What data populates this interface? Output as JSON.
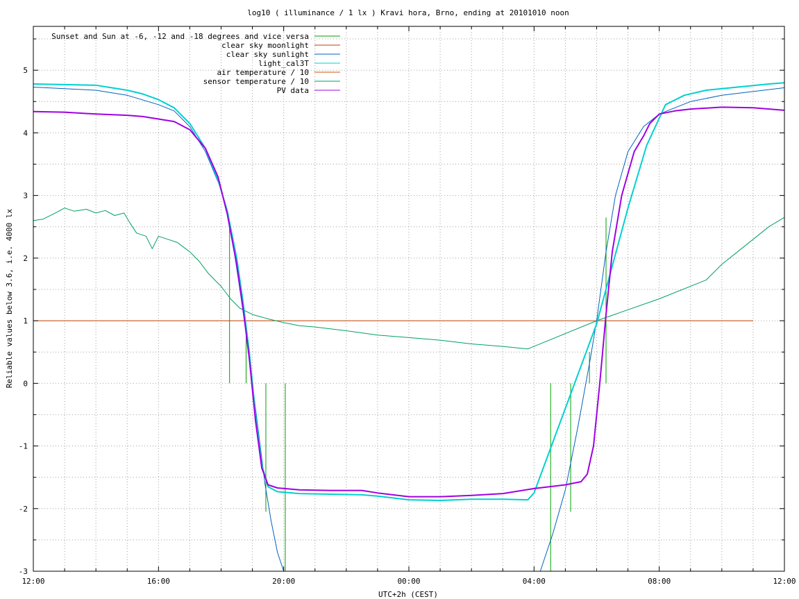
{
  "chart_data": {
    "type": "line",
    "title": "log10 ( illuminance / 1 lx ) Kravi hora, Brno, ending at 20101010 noon",
    "xlabel": "UTC+2h (CEST)",
    "ylabel": "Reliable values below 3.6, i.e. 4000 lx",
    "x_unit": "hours from 12:00",
    "xlim": [
      0,
      24
    ],
    "ylim": [
      -3,
      5.7
    ],
    "grid": true,
    "legend_position": "top-left",
    "x_ticks": [
      {
        "x": 0,
        "label": "12:00"
      },
      {
        "x": 4,
        "label": "16:00"
      },
      {
        "x": 8,
        "label": "20:00"
      },
      {
        "x": 12,
        "label": "00:00"
      },
      {
        "x": 16,
        "label": "04:00"
      },
      {
        "x": 20,
        "label": "08:00"
      },
      {
        "x": 24,
        "label": "12:00"
      }
    ],
    "y_ticks": [
      {
        "y": -3,
        "label": "-3"
      },
      {
        "y": -2,
        "label": "-2"
      },
      {
        "y": -1,
        "label": "-1"
      },
      {
        "y": 0,
        "label": "0"
      },
      {
        "y": 1,
        "label": "1"
      },
      {
        "y": 2,
        "label": "2"
      },
      {
        "y": 3,
        "label": "3"
      },
      {
        "y": 4,
        "label": "4"
      },
      {
        "y": 5,
        "label": "5"
      }
    ],
    "series": [
      {
        "name": "Sunset and Sun at -6, -12 and -18 degrees and vice versa",
        "color": "#00a000",
        "kind": "impulses",
        "points": [
          [
            6.27,
            2.6
          ],
          [
            6.8,
            0.9
          ],
          [
            7.43,
            -2.05
          ],
          [
            8.05,
            -3.0
          ],
          [
            16.53,
            -3.0
          ],
          [
            17.17,
            -2.05
          ],
          [
            17.77,
            0.5
          ],
          [
            18.3,
            2.65
          ]
        ]
      },
      {
        "name": "clear sky moonlight",
        "color": "#c04000",
        "kind": "line",
        "points": [
          [
            0,
            1.0
          ],
          [
            23.0,
            1.0
          ]
        ]
      },
      {
        "name": "clear sky sunlight",
        "color": "#0060c0",
        "kind": "line",
        "points": [
          [
            0,
            4.73
          ],
          [
            2.0,
            4.68
          ],
          [
            3.0,
            4.6
          ],
          [
            4.0,
            4.45
          ],
          [
            4.5,
            4.35
          ],
          [
            5.0,
            4.1
          ],
          [
            5.5,
            3.7
          ],
          [
            6.0,
            3.1
          ],
          [
            6.3,
            2.5
          ],
          [
            6.6,
            1.5
          ],
          [
            6.8,
            0.8
          ],
          [
            7.0,
            0.0
          ],
          [
            7.2,
            -0.8
          ],
          [
            7.4,
            -1.6
          ],
          [
            7.6,
            -2.2
          ],
          [
            7.8,
            -2.7
          ],
          [
            8.0,
            -3.0
          ],
          [
            16.2,
            -3.0
          ],
          [
            16.6,
            -2.4
          ],
          [
            17.0,
            -1.7
          ],
          [
            17.4,
            -0.7
          ],
          [
            17.8,
            0.4
          ],
          [
            18.0,
            1.0
          ],
          [
            18.3,
            2.1
          ],
          [
            18.6,
            3.0
          ],
          [
            19.0,
            3.7
          ],
          [
            19.5,
            4.1
          ],
          [
            20.0,
            4.3
          ],
          [
            21.0,
            4.5
          ],
          [
            22.0,
            4.6
          ],
          [
            24.0,
            4.72
          ]
        ]
      },
      {
        "name": "light_cal3T",
        "color": "#00d0d0",
        "kind": "line",
        "points": [
          [
            0,
            4.78
          ],
          [
            1.0,
            4.77
          ],
          [
            2.0,
            4.76
          ],
          [
            2.5,
            4.72
          ],
          [
            3.0,
            4.68
          ],
          [
            3.5,
            4.62
          ],
          [
            4.0,
            4.53
          ],
          [
            4.5,
            4.4
          ],
          [
            5.0,
            4.15
          ],
          [
            5.5,
            3.75
          ],
          [
            5.9,
            3.25
          ],
          [
            6.2,
            2.75
          ],
          [
            6.5,
            2.0
          ],
          [
            6.7,
            1.3
          ],
          [
            6.9,
            0.5
          ],
          [
            7.1,
            -0.5
          ],
          [
            7.3,
            -1.3
          ],
          [
            7.5,
            -1.65
          ],
          [
            7.8,
            -1.73
          ],
          [
            8.5,
            -1.76
          ],
          [
            9.5,
            -1.77
          ],
          [
            10.5,
            -1.78
          ],
          [
            11.0,
            -1.8
          ],
          [
            12.0,
            -1.86
          ],
          [
            13.0,
            -1.87
          ],
          [
            14.0,
            -1.85
          ],
          [
            15.0,
            -1.85
          ],
          [
            15.8,
            -1.86
          ],
          [
            16.0,
            -1.75
          ],
          [
            17.0,
            -0.4
          ],
          [
            18.0,
            0.95
          ],
          [
            19.0,
            2.8
          ],
          [
            19.6,
            3.8
          ],
          [
            20.2,
            4.45
          ],
          [
            20.8,
            4.6
          ],
          [
            21.5,
            4.68
          ],
          [
            22.5,
            4.73
          ],
          [
            23.5,
            4.78
          ],
          [
            24.0,
            4.8
          ]
        ]
      },
      {
        "name": "air temperature / 10",
        "color": "#d05000",
        "kind": "line",
        "points": []
      },
      {
        "name": "sensor temperature / 10",
        "color": "#00a060",
        "kind": "line",
        "points": [
          [
            0,
            2.6
          ],
          [
            0.3,
            2.62
          ],
          [
            0.7,
            2.72
          ],
          [
            1.0,
            2.8
          ],
          [
            1.3,
            2.75
          ],
          [
            1.7,
            2.78
          ],
          [
            2.0,
            2.72
          ],
          [
            2.3,
            2.76
          ],
          [
            2.6,
            2.68
          ],
          [
            2.9,
            2.72
          ],
          [
            3.1,
            2.55
          ],
          [
            3.3,
            2.4
          ],
          [
            3.6,
            2.35
          ],
          [
            3.8,
            2.15
          ],
          [
            4.0,
            2.35
          ],
          [
            4.3,
            2.3
          ],
          [
            4.6,
            2.25
          ],
          [
            5.0,
            2.1
          ],
          [
            5.3,
            1.95
          ],
          [
            5.6,
            1.75
          ],
          [
            6.0,
            1.55
          ],
          [
            6.3,
            1.35
          ],
          [
            6.6,
            1.2
          ],
          [
            7.0,
            1.1
          ],
          [
            7.5,
            1.03
          ],
          [
            8.0,
            0.97
          ],
          [
            8.5,
            0.92
          ],
          [
            9.0,
            0.9
          ],
          [
            10.0,
            0.84
          ],
          [
            11.0,
            0.77
          ],
          [
            12.0,
            0.73
          ],
          [
            13.0,
            0.69
          ],
          [
            14.0,
            0.63
          ],
          [
            15.0,
            0.59
          ],
          [
            15.8,
            0.55
          ],
          [
            18.0,
            1.0
          ],
          [
            20.0,
            1.35
          ],
          [
            21.5,
            1.65
          ],
          [
            22.0,
            1.9
          ],
          [
            22.5,
            2.1
          ],
          [
            23.0,
            2.3
          ],
          [
            23.5,
            2.5
          ],
          [
            24.0,
            2.65
          ]
        ]
      },
      {
        "name": "PV data",
        "color": "#a000e0",
        "kind": "line",
        "points": [
          [
            0,
            4.34
          ],
          [
            1.0,
            4.33
          ],
          [
            2.0,
            4.3
          ],
          [
            3.0,
            4.28
          ],
          [
            3.5,
            4.26
          ],
          [
            4.0,
            4.22
          ],
          [
            4.5,
            4.18
          ],
          [
            5.0,
            4.05
          ],
          [
            5.5,
            3.75
          ],
          [
            5.9,
            3.3
          ],
          [
            6.2,
            2.7
          ],
          [
            6.5,
            1.9
          ],
          [
            6.7,
            1.2
          ],
          [
            6.9,
            0.4
          ],
          [
            7.1,
            -0.6
          ],
          [
            7.3,
            -1.35
          ],
          [
            7.5,
            -1.62
          ],
          [
            7.8,
            -1.67
          ],
          [
            8.5,
            -1.7
          ],
          [
            9.5,
            -1.71
          ],
          [
            10.5,
            -1.71
          ],
          [
            11.0,
            -1.75
          ],
          [
            12.0,
            -1.81
          ],
          [
            13.0,
            -1.81
          ],
          [
            14.0,
            -1.79
          ],
          [
            15.0,
            -1.76
          ],
          [
            16.0,
            -1.68
          ],
          [
            17.0,
            -1.62
          ],
          [
            17.5,
            -1.57
          ],
          [
            17.7,
            -1.45
          ],
          [
            17.9,
            -1.0
          ],
          [
            18.1,
            0.0
          ],
          [
            18.3,
            1.1
          ],
          [
            18.5,
            2.1
          ],
          [
            18.8,
            3.0
          ],
          [
            19.2,
            3.7
          ],
          [
            19.5,
            3.95
          ],
          [
            19.7,
            4.15
          ],
          [
            20.0,
            4.3
          ],
          [
            20.5,
            4.35
          ],
          [
            21.0,
            4.38
          ],
          [
            22.0,
            4.41
          ],
          [
            23.0,
            4.4
          ],
          [
            24.0,
            4.36
          ]
        ]
      }
    ]
  }
}
